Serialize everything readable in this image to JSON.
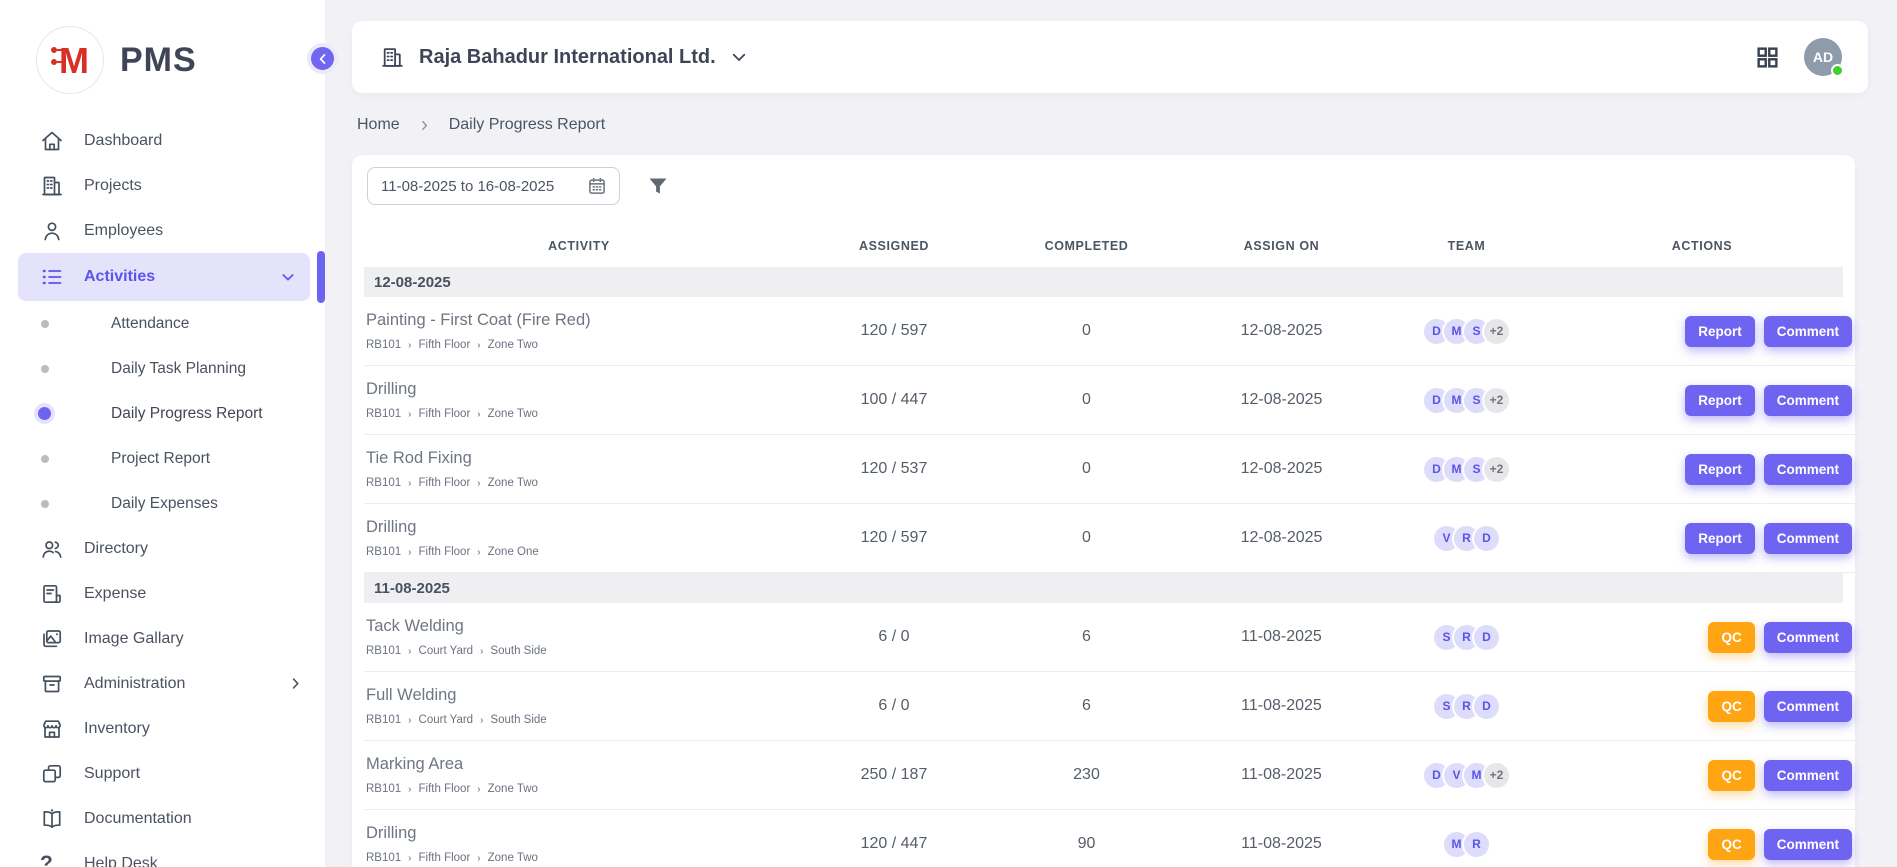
{
  "brand": {
    "name": "PMS",
    "logo_letter": "M"
  },
  "sidebar": {
    "items": [
      {
        "label": "Dashboard",
        "icon": "home-icon"
      },
      {
        "label": "Projects",
        "icon": "building-icon"
      },
      {
        "label": "Employees",
        "icon": "person-icon"
      },
      {
        "label": "Activities",
        "icon": "list-icon",
        "active": true,
        "expanded": true,
        "children": [
          {
            "label": "Attendance",
            "active": false
          },
          {
            "label": "Daily Task Planning",
            "active": false
          },
          {
            "label": "Daily Progress Report",
            "active": true
          },
          {
            "label": "Project Report",
            "active": false
          },
          {
            "label": "Daily Expenses",
            "active": false
          }
        ]
      },
      {
        "label": "Directory",
        "icon": "people-icon"
      },
      {
        "label": "Expense",
        "icon": "receipt-icon"
      },
      {
        "label": "Image Gallary",
        "icon": "image-icon"
      },
      {
        "label": "Administration",
        "icon": "archive-icon",
        "has_submenu": true
      },
      {
        "label": "Inventory",
        "icon": "store-icon"
      },
      {
        "label": "Support",
        "icon": "squares-icon"
      },
      {
        "label": "Documentation",
        "icon": "book-icon"
      },
      {
        "label": "Help Desk",
        "icon": "question-icon"
      }
    ]
  },
  "header": {
    "company": "Raja Bahadur International Ltd.",
    "avatar_initials": "AD",
    "icons": [
      "building-icon",
      "chevron-down-icon",
      "grid-icon",
      "avatar-online-dot"
    ]
  },
  "breadcrumb": {
    "home": "Home",
    "current": "Daily Progress Report"
  },
  "filters": {
    "date_range": "11-08-2025 to 16-08-2025",
    "icons": [
      "calendar-icon",
      "funnel-icon"
    ]
  },
  "table": {
    "columns": [
      "ACTIVITY",
      "ASSIGNED",
      "COMPLETED",
      "ASSIGN ON",
      "TEAM",
      "ACTIONS"
    ],
    "groups": [
      {
        "date": "12-08-2025",
        "rows": [
          {
            "activity": "Painting - First Coat (Fire Red)",
            "path": [
              "RB101",
              "Fifth Floor",
              "Zone Two"
            ],
            "assigned": "120 / 597",
            "completed": "0",
            "assign_on": "12-08-2025",
            "team": [
              "D",
              "M",
              "S"
            ],
            "team_extra": "+2",
            "buttons": [
              {
                "label": "Report",
                "color": "purple"
              },
              {
                "label": "Comment",
                "color": "purple"
              }
            ]
          },
          {
            "activity": "Drilling",
            "path": [
              "RB101",
              "Fifth Floor",
              "Zone Two"
            ],
            "assigned": "100 / 447",
            "completed": "0",
            "assign_on": "12-08-2025",
            "team": [
              "D",
              "M",
              "S"
            ],
            "team_extra": "+2",
            "buttons": [
              {
                "label": "Report",
                "color": "purple"
              },
              {
                "label": "Comment",
                "color": "purple"
              }
            ]
          },
          {
            "activity": "Tie Rod Fixing",
            "path": [
              "RB101",
              "Fifth Floor",
              "Zone Two"
            ],
            "assigned": "120 / 537",
            "completed": "0",
            "assign_on": "12-08-2025",
            "team": [
              "D",
              "M",
              "S"
            ],
            "team_extra": "+2",
            "buttons": [
              {
                "label": "Report",
                "color": "purple"
              },
              {
                "label": "Comment",
                "color": "purple"
              }
            ]
          },
          {
            "activity": "Drilling",
            "path": [
              "RB101",
              "Fifth Floor",
              "Zone One"
            ],
            "assigned": "120 / 597",
            "completed": "0",
            "assign_on": "12-08-2025",
            "team": [
              "V",
              "R",
              "D"
            ],
            "team_extra": null,
            "buttons": [
              {
                "label": "Report",
                "color": "purple"
              },
              {
                "label": "Comment",
                "color": "purple"
              }
            ]
          }
        ]
      },
      {
        "date": "11-08-2025",
        "rows": [
          {
            "activity": "Tack Welding",
            "path": [
              "RB101",
              "Court Yard",
              "South Side"
            ],
            "assigned": "6 / 0",
            "completed": "6",
            "assign_on": "11-08-2025",
            "team": [
              "S",
              "R",
              "D"
            ],
            "team_extra": null,
            "buttons": [
              {
                "label": "QC",
                "color": "orange"
              },
              {
                "label": "Comment",
                "color": "purple"
              }
            ]
          },
          {
            "activity": "Full Welding",
            "path": [
              "RB101",
              "Court Yard",
              "South Side"
            ],
            "assigned": "6 / 0",
            "completed": "6",
            "assign_on": "11-08-2025",
            "team": [
              "S",
              "R",
              "D"
            ],
            "team_extra": null,
            "buttons": [
              {
                "label": "QC",
                "color": "orange"
              },
              {
                "label": "Comment",
                "color": "purple"
              }
            ]
          },
          {
            "activity": "Marking Area",
            "path": [
              "RB101",
              "Fifth Floor",
              "Zone Two"
            ],
            "assigned": "250 / 187",
            "completed": "230",
            "assign_on": "11-08-2025",
            "team": [
              "D",
              "V",
              "M"
            ],
            "team_extra": "+2",
            "buttons": [
              {
                "label": "QC",
                "color": "orange"
              },
              {
                "label": "Comment",
                "color": "purple"
              }
            ]
          },
          {
            "activity": "Drilling",
            "path": [
              "RB101",
              "Fifth Floor",
              "Zone Two"
            ],
            "assigned": "120 / 447",
            "completed": "90",
            "assign_on": "11-08-2025",
            "team": [
              "M",
              "R"
            ],
            "team_extra": null,
            "buttons": [
              {
                "label": "QC",
                "color": "orange"
              },
              {
                "label": "Comment",
                "color": "purple"
              }
            ]
          }
        ]
      }
    ]
  },
  "colors": {
    "accent_purple": "#6f63f2",
    "accent_purple_light": "#e5e3fc",
    "warning_orange": "#ffa412",
    "logo_red": "#d93025",
    "avatar_gray": "#8e9bab",
    "online_green": "#43ce31",
    "page_bg": "#f1f1f6",
    "group_band_bg": "#efeff1"
  }
}
